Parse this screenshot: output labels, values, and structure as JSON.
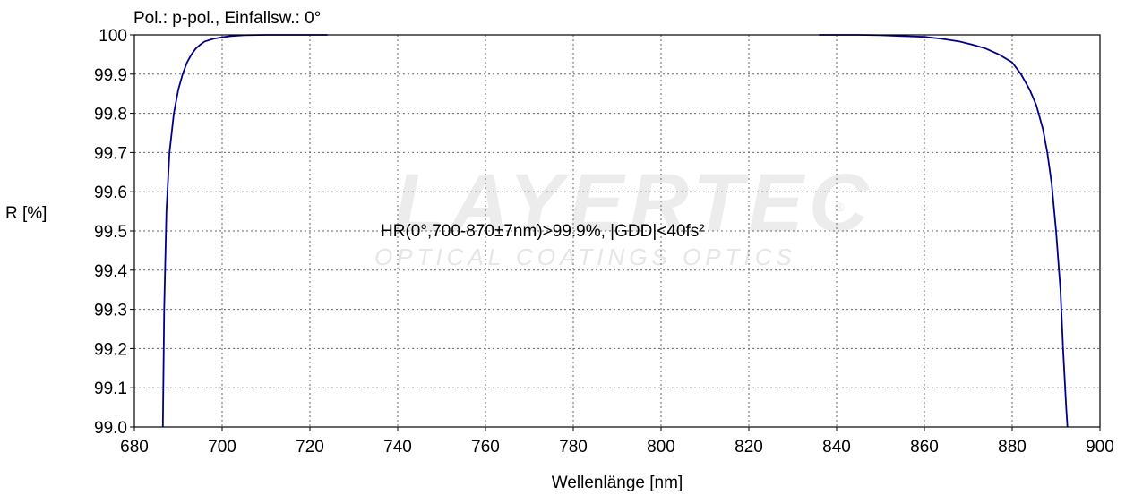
{
  "chart_data": {
    "type": "line",
    "title": "Pol.: p-pol., Einfallsw.: 0°",
    "annotation": "HR(0°,700-870±7nm)>99.9%, |GDD|<40fs²",
    "xlabel": "Wellenlänge [nm]",
    "ylabel": "R [%]",
    "xlim": [
      680,
      900
    ],
    "ylim": [
      99.0,
      100.0
    ],
    "x_ticks": [
      "680",
      "700",
      "720",
      "740",
      "760",
      "780",
      "800",
      "820",
      "840",
      "860",
      "880",
      "900"
    ],
    "y_ticks": [
      "99.0",
      "99.1",
      "99.2",
      "99.3",
      "99.4",
      "99.5",
      "99.6",
      "99.7",
      "99.8",
      "99.9",
      "100"
    ],
    "grid": true,
    "series": [
      {
        "color": "#00008b",
        "x": [
          686.5,
          686.8,
          687.3,
          688,
          689,
          690,
          691,
          692,
          693,
          694,
          695,
          696,
          698,
          700,
          702,
          705,
          710,
          715,
          720,
          724,
          836,
          845,
          850,
          855,
          860,
          864,
          868,
          871,
          874,
          877,
          880,
          882,
          884,
          885.5,
          887,
          888,
          889,
          890,
          891,
          891.6,
          892.3,
          892.6
        ],
        "y": [
          99.0,
          99.3,
          99.55,
          99.7,
          99.8,
          99.86,
          99.9,
          99.93,
          99.95,
          99.965,
          99.975,
          99.983,
          99.99,
          99.994,
          99.997,
          99.999,
          100.0,
          100.0,
          100.0,
          100.0,
          100.0,
          100.0,
          99.999,
          99.997,
          99.995,
          99.99,
          99.983,
          99.975,
          99.965,
          99.95,
          99.93,
          99.9,
          99.86,
          99.82,
          99.76,
          99.7,
          99.62,
          99.5,
          99.35,
          99.2,
          99.05,
          99.0
        ]
      }
    ]
  },
  "watermark": {
    "brand": "LAYERTEC",
    "tagline": "OPTICAL COATINGS OPTICS",
    "registered": "®"
  }
}
